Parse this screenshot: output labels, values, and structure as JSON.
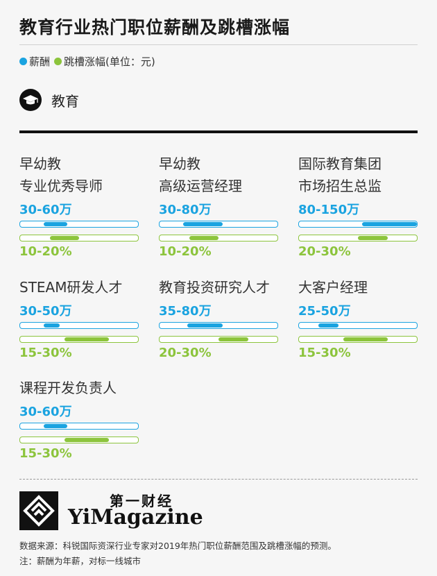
{
  "title": "教育行业热门职位薪酬及跳槽涨幅",
  "legend": {
    "salary": "薪酬",
    "jump": "跳槽涨幅(单位：元)"
  },
  "colors": {
    "salary": "#1aa3e0",
    "jump": "#8cc43c"
  },
  "category": {
    "label": "教育",
    "icon": "graduation-cap-icon"
  },
  "chart_data": {
    "type": "bar",
    "salary_scale_max_wan": 150,
    "jump_scale_max_pct": 40,
    "jobs": [
      {
        "name_line1": "早幼教",
        "name_line2": "专业优秀导师",
        "salary": "30-60万",
        "salary_min": 30,
        "salary_max": 60,
        "jump": "10-20%",
        "jump_min": 10,
        "jump_max": 20
      },
      {
        "name_line1": "早幼教",
        "name_line2": "高级运营经理",
        "salary": "30-80万",
        "salary_min": 30,
        "salary_max": 80,
        "jump": "10-20%",
        "jump_min": 10,
        "jump_max": 20
      },
      {
        "name_line1": "国际教育集团",
        "name_line2": "市场招生总监",
        "salary": "80-150万",
        "salary_min": 80,
        "salary_max": 150,
        "jump": "20-30%",
        "jump_min": 20,
        "jump_max": 30
      },
      {
        "name_line1": "STEAM研发人才",
        "name_line2": "",
        "salary": "30-50万",
        "salary_min": 30,
        "salary_max": 50,
        "jump": "15-30%",
        "jump_min": 15,
        "jump_max": 30
      },
      {
        "name_line1": "教育投资研究人才",
        "name_line2": "",
        "salary": "35-80万",
        "salary_min": 35,
        "salary_max": 80,
        "jump": "20-30%",
        "jump_min": 20,
        "jump_max": 30
      },
      {
        "name_line1": "大客户经理",
        "name_line2": "",
        "salary": "25-50万",
        "salary_min": 25,
        "salary_max": 50,
        "jump": "15-30%",
        "jump_min": 15,
        "jump_max": 30
      },
      {
        "name_line1": "课程开发负责人",
        "name_line2": "",
        "salary": "30-60万",
        "salary_min": 30,
        "salary_max": 60,
        "jump": "15-30%",
        "jump_min": 15,
        "jump_max": 30
      }
    ]
  },
  "brand": {
    "cn": "第一财经",
    "en": "YiMagazine"
  },
  "source": "数据来源：科锐国际资深行业专家对2019年热门职位薪酬范围及跳槽涨幅的预测。",
  "note": "注：薪酬为年薪，对标一线城市"
}
